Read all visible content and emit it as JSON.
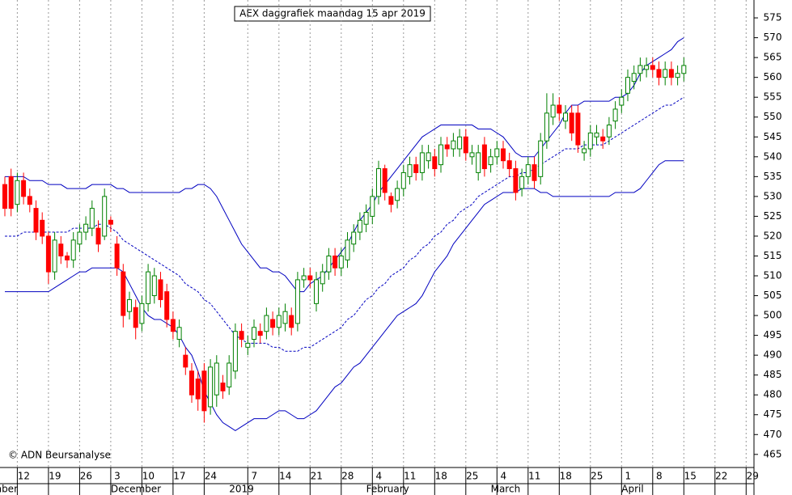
{
  "chart_data": {
    "type": "candlestick",
    "title": "AEX daggrafiek maandag 15 apr 2019",
    "annotation": "© ADN Beursanalyse",
    "categories": [
      null,
      null,
      "12",
      null,
      null,
      null,
      null,
      "19",
      null,
      null,
      null,
      null,
      "26",
      null,
      null,
      null,
      null,
      "3",
      null,
      null,
      null,
      null,
      "10",
      null,
      null,
      null,
      null,
      "17",
      null,
      null,
      null,
      null,
      "24",
      null,
      null,
      null,
      null,
      null,
      null,
      "7",
      null,
      null,
      null,
      null,
      "14",
      null,
      null,
      null,
      null,
      "21",
      null,
      null,
      null,
      null,
      "28",
      null,
      null,
      null,
      null,
      "4",
      null,
      null,
      null,
      null,
      "11",
      null,
      null,
      null,
      null,
      "18",
      null,
      null,
      null,
      null,
      "25",
      null,
      null,
      null,
      null,
      "4",
      null,
      null,
      null,
      null,
      "11",
      null,
      null,
      null,
      null,
      "18",
      null,
      null,
      null,
      null,
      "25",
      null,
      null,
      null,
      null,
      "1",
      null,
      null,
      null,
      null,
      "8",
      null,
      null,
      null,
      null,
      "15",
      null,
      null,
      null,
      null,
      "22",
      null,
      null,
      null,
      null,
      "29",
      null
    ],
    "month_labels": [
      "mber",
      null,
      null,
      null,
      null,
      null,
      null,
      null,
      null,
      null,
      null,
      null,
      null,
      null,
      null,
      null,
      null,
      "December",
      null,
      null,
      null,
      null,
      null,
      null,
      null,
      null,
      null,
      null,
      null,
      null,
      null,
      null,
      null,
      null,
      null,
      null,
      "2019",
      null,
      null,
      null,
      null,
      null,
      null,
      null,
      null,
      null,
      null,
      null,
      null,
      null,
      null,
      null,
      null,
      null,
      null,
      null,
      null,
      null,
      "February",
      null,
      null,
      null,
      null,
      null,
      null,
      null,
      null,
      null,
      null,
      null,
      null,
      null,
      null,
      null,
      null,
      null,
      null,
      null,
      "March",
      null,
      null,
      null,
      null,
      null,
      null,
      null,
      null,
      null,
      null,
      null,
      null,
      null,
      null,
      null,
      null,
      null,
      null,
      null,
      null,
      "April",
      null,
      null,
      null,
      null,
      null,
      null,
      null,
      null,
      null,
      null,
      null,
      null,
      null,
      null,
      null,
      null,
      null,
      null,
      null,
      null,
      null
    ],
    "open": [
      533,
      535,
      528,
      534,
      530,
      527,
      524,
      520,
      511,
      518,
      515,
      514,
      518,
      521,
      522,
      522,
      520,
      524,
      518,
      511,
      501,
      502,
      498,
      503,
      505,
      509,
      506,
      499,
      494,
      490,
      486,
      484,
      486,
      477,
      480,
      483,
      482,
      486,
      496,
      492,
      494,
      496,
      496,
      499,
      497,
      498,
      500,
      498,
      509,
      510,
      503,
      508,
      511,
      515,
      512,
      514,
      518,
      521,
      523,
      525,
      530,
      537,
      530,
      529,
      532,
      535,
      538,
      536,
      539,
      540,
      538,
      543,
      542,
      542,
      545,
      540,
      536,
      543,
      538,
      540,
      542,
      539,
      537,
      532,
      535,
      538,
      535,
      544,
      550,
      553,
      549,
      551,
      551,
      541,
      542,
      545,
      545,
      545,
      549,
      553,
      556,
      559,
      561,
      562,
      563,
      562,
      560,
      562,
      560,
      561,
      null,
      null,
      null,
      null,
      null,
      null,
      null,
      null,
      null,
      null,
      null
    ],
    "high": [
      535,
      537,
      536,
      536,
      532,
      529,
      526,
      521,
      521,
      520,
      516,
      521,
      523,
      525,
      529,
      524,
      532,
      525,
      520,
      513,
      506,
      504,
      505,
      513,
      512,
      511,
      508,
      501,
      499,
      492,
      488,
      486,
      488,
      489,
      490,
      485,
      490,
      498,
      498,
      495,
      499,
      498,
      502,
      501,
      502,
      503,
      502,
      511,
      512,
      512,
      511,
      513,
      517,
      517,
      517,
      521,
      523,
      526,
      528,
      532,
      539,
      538,
      531,
      534,
      538,
      540,
      540,
      543,
      543,
      542,
      545,
      545,
      546,
      547,
      547,
      543,
      543,
      545,
      542,
      544,
      544,
      541,
      539,
      537,
      540,
      540,
      546,
      556,
      556,
      555,
      553,
      553,
      553,
      544,
      548,
      548,
      547,
      550,
      554,
      557,
      562,
      563,
      565,
      565,
      565,
      564,
      564,
      564,
      563,
      565,
      null,
      null,
      null,
      null,
      null,
      null,
      null,
      null,
      null,
      null,
      null
    ],
    "low": [
      525,
      525,
      526,
      528,
      526,
      519,
      518,
      508,
      509,
      513,
      512,
      512,
      516,
      519,
      520,
      516,
      519,
      521,
      510,
      497,
      499,
      494,
      496,
      501,
      503,
      502,
      497,
      494,
      492,
      485,
      478,
      476,
      473,
      475,
      477,
      479,
      480,
      484,
      492,
      490,
      492,
      493,
      494,
      495,
      495,
      496,
      495,
      496,
      507,
      507,
      501,
      506,
      509,
      510,
      510,
      512,
      516,
      519,
      521,
      523,
      528,
      529,
      526,
      527,
      530,
      533,
      534,
      534,
      537,
      535,
      536,
      540,
      540,
      540,
      539,
      538,
      534,
      535,
      536,
      538,
      537,
      535,
      529,
      530,
      533,
      532,
      533,
      542,
      548,
      549,
      547,
      544,
      541,
      539,
      540,
      543,
      542,
      543,
      547,
      551,
      554,
      557,
      559,
      560,
      560,
      558,
      558,
      558,
      558,
      559,
      null,
      null,
      null,
      null,
      null,
      null,
      null,
      null,
      null,
      null,
      null
    ],
    "close": [
      527,
      527,
      534,
      530,
      528,
      521,
      520,
      511,
      519,
      515,
      514,
      519,
      521,
      523,
      527,
      518,
      530,
      523,
      512,
      500,
      504,
      497,
      503,
      511,
      510,
      504,
      499,
      496,
      497,
      487,
      480,
      479,
      476,
      487,
      488,
      481,
      488,
      496,
      494,
      493,
      497,
      495,
      500,
      497,
      500,
      501,
      497,
      509,
      510,
      509,
      509,
      511,
      515,
      512,
      515,
      519,
      521,
      524,
      526,
      530,
      537,
      531,
      528,
      532,
      536,
      538,
      536,
      541,
      541,
      537,
      543,
      542,
      544,
      545,
      541,
      541,
      541,
      537,
      540,
      542,
      539,
      537,
      531,
      535,
      538,
      534,
      544,
      551,
      553,
      551,
      551,
      546,
      543,
      542,
      546,
      546,
      544,
      548,
      552,
      555,
      560,
      561,
      563,
      563,
      562,
      560,
      562,
      560,
      561,
      563,
      null,
      null,
      null,
      null,
      null,
      null,
      null,
      null,
      null,
      null,
      null
    ],
    "upper": [
      535,
      535,
      535,
      535,
      534,
      534,
      534,
      533,
      533,
      533,
      532,
      532,
      532,
      532,
      533,
      533,
      533,
      533,
      532,
      532,
      531,
      531,
      531,
      531,
      531,
      531,
      531,
      531,
      531,
      532,
      532,
      533,
      533,
      532,
      530,
      527,
      524,
      521,
      518,
      516,
      514,
      512,
      512,
      511,
      511,
      510,
      508,
      506,
      506,
      508,
      509,
      510,
      512,
      514,
      516,
      518,
      521,
      524,
      526,
      528,
      531,
      533,
      535,
      537,
      539,
      541,
      543,
      545,
      546,
      547,
      548,
      548,
      548,
      548,
      548,
      548,
      547,
      547,
      547,
      546,
      545,
      543,
      541,
      540,
      540,
      540,
      542,
      544,
      546,
      548,
      551,
      553,
      553,
      554,
      554,
      554,
      554,
      554,
      555,
      555,
      556,
      558,
      561,
      563,
      564,
      565,
      566,
      567,
      569,
      570,
      null,
      null,
      null,
      null,
      null,
      null,
      null,
      null,
      null,
      null,
      null
    ],
    "middle": [
      520,
      520,
      520,
      521,
      521,
      521,
      521,
      521,
      521,
      521,
      521,
      522,
      522,
      522,
      522,
      523,
      523,
      522,
      521,
      519,
      518,
      517,
      516,
      515,
      514,
      513,
      512,
      511,
      510,
      508,
      507,
      506,
      504,
      503,
      501,
      499,
      497,
      495,
      494,
      493,
      493,
      493,
      493,
      492,
      492,
      491,
      491,
      491,
      492,
      492,
      493,
      494,
      495,
      496,
      497,
      499,
      500,
      502,
      504,
      505,
      507,
      508,
      510,
      511,
      512,
      514,
      515,
      517,
      518,
      520,
      521,
      523,
      524,
      526,
      527,
      528,
      530,
      531,
      532,
      533,
      534,
      535,
      535,
      536,
      536,
      537,
      538,
      539,
      540,
      541,
      542,
      542,
      542,
      543,
      543,
      543,
      543,
      544,
      545,
      546,
      547,
      548,
      549,
      550,
      551,
      552,
      553,
      553,
      554,
      555,
      null,
      null,
      null,
      null,
      null,
      null,
      null,
      null,
      null,
      null,
      null
    ],
    "lower": [
      506,
      506,
      506,
      506,
      506,
      506,
      506,
      506,
      507,
      508,
      509,
      510,
      511,
      511,
      512,
      512,
      512,
      512,
      512,
      511,
      508,
      505,
      502,
      500,
      499,
      499,
      498,
      497,
      495,
      492,
      490,
      486,
      481,
      478,
      475,
      473,
      472,
      471,
      472,
      473,
      474,
      474,
      474,
      475,
      476,
      476,
      475,
      474,
      474,
      475,
      476,
      478,
      480,
      482,
      483,
      485,
      487,
      488,
      490,
      492,
      494,
      496,
      498,
      500,
      501,
      502,
      503,
      505,
      508,
      511,
      513,
      515,
      518,
      520,
      522,
      524,
      526,
      528,
      529,
      530,
      531,
      531,
      531,
      532,
      532,
      532,
      531,
      531,
      530,
      530,
      530,
      530,
      530,
      530,
      530,
      530,
      530,
      530,
      531,
      531,
      531,
      531,
      532,
      534,
      536,
      538,
      539,
      539,
      539,
      539,
      null,
      null,
      null,
      null,
      null,
      null,
      null,
      null,
      null,
      null,
      null
    ],
    "up_color": "#008000",
    "down_color": "#ff0000",
    "band_color": "#0000c0",
    "ylim": [
      461.7,
      579.5
    ],
    "yticks": [
      465,
      470,
      475,
      480,
      485,
      490,
      495,
      500,
      505,
      510,
      515,
      520,
      525,
      530,
      535,
      540,
      545,
      550,
      555,
      560,
      565,
      570,
      575
    ],
    "grid": true
  }
}
